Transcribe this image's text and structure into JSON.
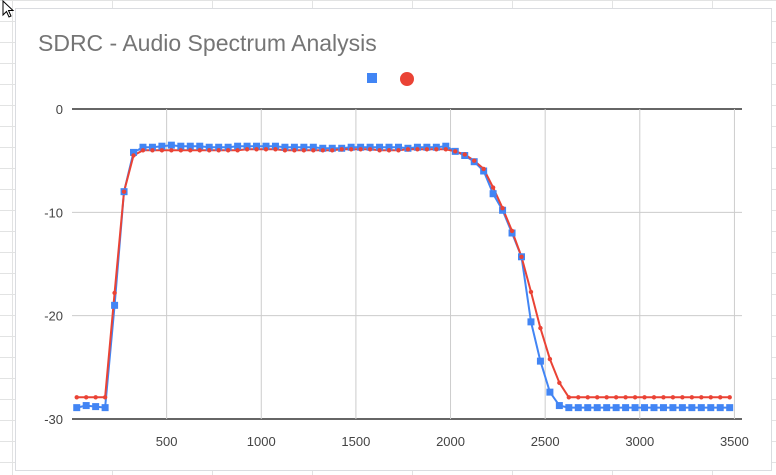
{
  "chart_data": {
    "type": "line",
    "title": "SDRC - Audio Spectrum Analysis",
    "xlabel": "",
    "ylabel": "",
    "xlim": [
      0,
      3540
    ],
    "ylim": [
      -30,
      0
    ],
    "xticks": [
      500,
      1000,
      1500,
      2000,
      2500,
      3000,
      3500
    ],
    "yticks": [
      0,
      -10,
      -20,
      -30
    ],
    "grid": true,
    "legend": "top",
    "series": [
      {
        "color": "#4285f4",
        "marker": "square",
        "x": [
          25,
          75,
          125,
          175,
          225,
          275,
          325,
          375,
          425,
          475,
          525,
          575,
          625,
          675,
          725,
          775,
          825,
          875,
          925,
          975,
          1025,
          1075,
          1125,
          1175,
          1225,
          1275,
          1325,
          1375,
          1425,
          1475,
          1525,
          1575,
          1625,
          1675,
          1725,
          1775,
          1825,
          1875,
          1925,
          1975,
          2025,
          2075,
          2125,
          2175,
          2225,
          2275,
          2325,
          2375,
          2425,
          2475,
          2525,
          2575,
          2625,
          2675,
          2725,
          2775,
          2825,
          2875,
          2925,
          2975,
          3025,
          3075,
          3125,
          3175,
          3225,
          3275,
          3325,
          3375,
          3425,
          3475
        ],
        "y": [
          -28.9,
          -28.7,
          -28.8,
          -28.9,
          -19,
          -8,
          -4.2,
          -3.7,
          -3.7,
          -3.6,
          -3.5,
          -3.6,
          -3.6,
          -3.6,
          -3.7,
          -3.7,
          -3.7,
          -3.6,
          -3.6,
          -3.6,
          -3.6,
          -3.6,
          -3.7,
          -3.7,
          -3.7,
          -3.7,
          -3.8,
          -3.8,
          -3.8,
          -3.7,
          -3.7,
          -3.7,
          -3.7,
          -3.7,
          -3.7,
          -3.8,
          -3.7,
          -3.7,
          -3.7,
          -3.6,
          -4.1,
          -4.5,
          -5.1,
          -6,
          -8.2,
          -9.8,
          -12,
          -14.3,
          -20.6,
          -24.4,
          -27.4,
          -28.7,
          -28.9,
          -28.9,
          -28.9,
          -28.9,
          -28.9,
          -28.9,
          -28.9,
          -28.9,
          -28.9,
          -28.9,
          -28.9,
          -28.9,
          -28.9,
          -28.9,
          -28.9,
          -28.9,
          -28.9,
          -28.9
        ]
      },
      {
        "color": "#ea4335",
        "marker": "circle",
        "x": [
          25,
          75,
          125,
          175,
          225,
          275,
          325,
          375,
          425,
          475,
          525,
          575,
          625,
          675,
          725,
          775,
          825,
          875,
          925,
          975,
          1025,
          1075,
          1125,
          1175,
          1225,
          1275,
          1325,
          1375,
          1425,
          1475,
          1525,
          1575,
          1625,
          1675,
          1725,
          1775,
          1825,
          1875,
          1925,
          1975,
          2025,
          2075,
          2125,
          2175,
          2225,
          2275,
          2325,
          2375,
          2425,
          2475,
          2525,
          2575,
          2625,
          2675,
          2725,
          2775,
          2825,
          2875,
          2925,
          2975,
          3025,
          3075,
          3125,
          3175,
          3225,
          3275,
          3325,
          3375,
          3425,
          3475
        ],
        "y": [
          -27.9,
          -27.9,
          -27.9,
          -27.9,
          -17.8,
          -8,
          -4.5,
          -4,
          -4,
          -4,
          -4,
          -4,
          -4,
          -4,
          -4,
          -4,
          -4,
          -4,
          -3.9,
          -3.9,
          -3.9,
          -3.9,
          -4,
          -4,
          -4,
          -4,
          -4,
          -4,
          -3.9,
          -3.9,
          -3.9,
          -3.9,
          -4,
          -4,
          -4,
          -3.9,
          -3.9,
          -3.9,
          -3.9,
          -3.9,
          -4.1,
          -4.4,
          -5,
          -5.8,
          -7.6,
          -9.6,
          -11.8,
          -14.3,
          -17.7,
          -21.2,
          -24.2,
          -26.5,
          -27.9,
          -27.9,
          -27.9,
          -27.9,
          -27.9,
          -27.9,
          -27.9,
          -27.9,
          -27.9,
          -27.9,
          -27.9,
          -27.9,
          -27.9,
          -27.9,
          -27.9,
          -27.9,
          -27.9,
          -27.9
        ]
      }
    ]
  }
}
